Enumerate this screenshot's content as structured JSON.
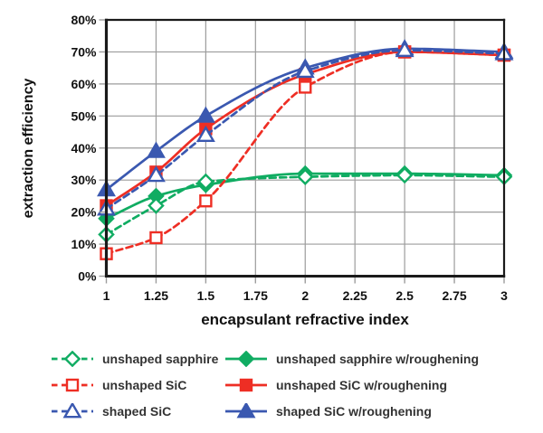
{
  "chart_data": {
    "type": "line",
    "xlabel": "encapsulant refractive index",
    "ylabel": "extraction efficiency",
    "xlim": [
      1,
      3
    ],
    "ylim": [
      0,
      80
    ],
    "grid": true,
    "grid_color": "#9c9c9c",
    "frame_color": "#1a1a1a",
    "x_ticks": [
      "1",
      "1.25",
      "1.5",
      "1.75",
      "2",
      "2.25",
      "2.5",
      "2.75",
      "3"
    ],
    "y_ticks": [
      "0%",
      "10%",
      "20%",
      "30%",
      "40%",
      "50%",
      "60%",
      "70%",
      "80%"
    ],
    "x": [
      1,
      1.25,
      1.5,
      2,
      2.5,
      3
    ],
    "legend_position": "bottom",
    "series": [
      {
        "name": "unshaped sapphire",
        "color": "#10ac62",
        "line": "dashed",
        "marker": "diamond",
        "marker_style": "open",
        "values": [
          13,
          22,
          29.5,
          31,
          31.5,
          31
        ]
      },
      {
        "name": "unshaped sapphire w/roughening",
        "color": "#10ac62",
        "line": "solid",
        "marker": "diamond",
        "marker_style": "filled",
        "values": [
          18,
          25,
          28.5,
          32,
          32,
          31.5
        ]
      },
      {
        "name": "unshaped SiC",
        "color": "#ee2e24",
        "line": "dashed",
        "marker": "square",
        "marker_style": "open",
        "values": [
          7,
          12,
          23.5,
          59,
          70,
          69
        ]
      },
      {
        "name": "unshaped SiC w/roughening",
        "color": "#ee2e24",
        "line": "solid",
        "marker": "square",
        "marker_style": "filled",
        "values": [
          22,
          32.5,
          46,
          63,
          70,
          69
        ]
      },
      {
        "name": "shaped SiC",
        "color": "#3a58b0",
        "line": "dashed",
        "marker": "triangle",
        "marker_style": "open",
        "values": [
          21,
          31.5,
          44,
          64,
          70.5,
          69.5
        ]
      },
      {
        "name": "shaped SiC w/roughening",
        "color": "#3a58b0",
        "line": "solid",
        "marker": "triangle",
        "marker_style": "filled",
        "values": [
          27,
          39,
          50,
          65,
          71,
          70
        ]
      }
    ],
    "draw_order": [
      1,
      0,
      3,
      5,
      2,
      4
    ]
  }
}
